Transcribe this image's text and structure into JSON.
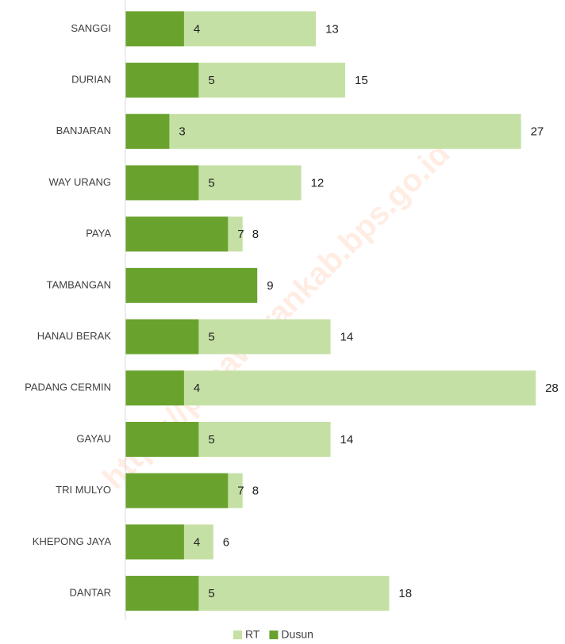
{
  "chart_data": {
    "type": "bar",
    "orientation": "horizontal",
    "overlap": true,
    "categories": [
      "SANGGI",
      "DURIAN",
      "BANJARAN",
      "WAY URANG",
      "PAYA",
      "TAMBANGAN",
      "HANAU BERAK",
      "PADANG CERMIN",
      "GAYAU",
      "TRI MULYO",
      "KHEPONG JAYA",
      "DANTAR"
    ],
    "series": [
      {
        "name": "RT",
        "color": "#c5e0a5",
        "values": [
          13,
          15,
          27,
          12,
          8,
          null,
          14,
          28,
          14,
          8,
          6,
          18
        ]
      },
      {
        "name": "Dusun",
        "color": "#6aa22e",
        "values": [
          4,
          5,
          3,
          5,
          7,
          9,
          5,
          4,
          5,
          7,
          4,
          5
        ]
      }
    ],
    "xlim": [
      0,
      30
    ],
    "legend": "bottom",
    "watermark": "https://pesawarankab.bps.go.id"
  }
}
